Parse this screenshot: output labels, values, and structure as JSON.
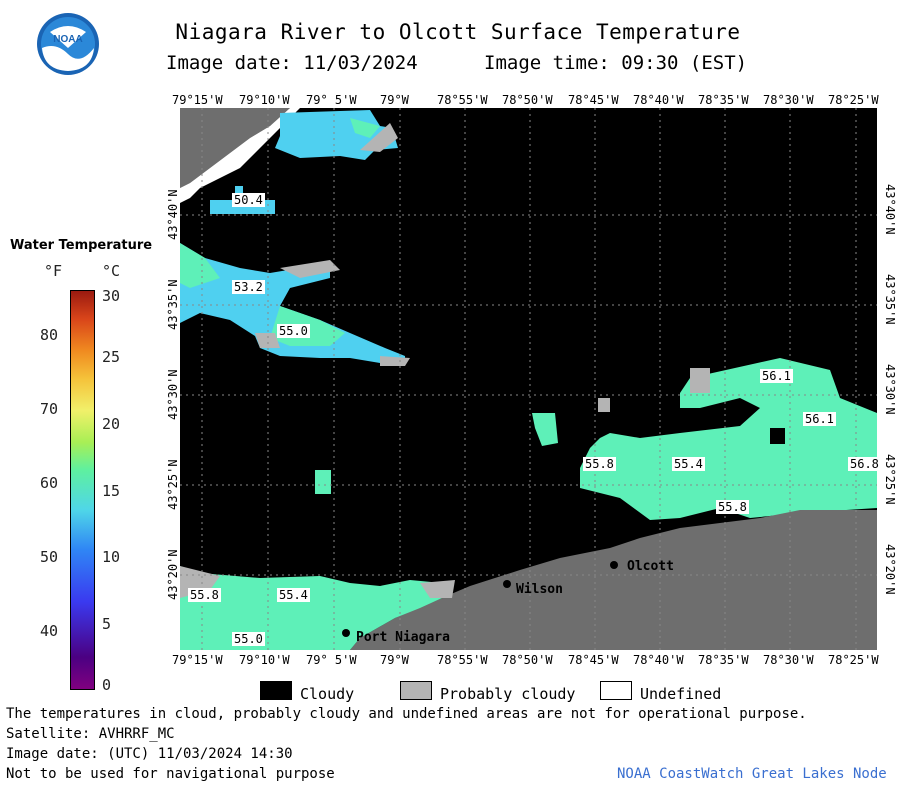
{
  "header": {
    "title": "Niagara River to Olcott Surface Temperature",
    "image_date": "Image date: 11/03/2024",
    "image_time": "Image time: 09:30 (EST)"
  },
  "logo": {
    "text": "NOAA"
  },
  "longitude_labels": [
    "79°15'W",
    "79°10'W",
    "79° 5'W",
    "79°W",
    "78°55'W",
    "78°50'W",
    "78°45'W",
    "78°40'W",
    "78°35'W",
    "78°30'W",
    "78°25'W"
  ],
  "latitude_labels": [
    "43°40'N",
    "43°35'N",
    "43°30'N",
    "43°25'N",
    "43°20'N"
  ],
  "legend": {
    "title": "Water Temperature",
    "unit_f": "°F",
    "unit_c": "°C",
    "f_ticks": [
      "80",
      "70",
      "60",
      "50",
      "40"
    ],
    "c_ticks": [
      "30",
      "25",
      "20",
      "15",
      "10",
      "5",
      "0"
    ]
  },
  "map": {
    "temperature_labels": [
      "50.4",
      "53.2",
      "55.0",
      "56.1",
      "56.1",
      "56.8",
      "55.8",
      "55.4",
      "55.8",
      "55.8",
      "55.4",
      "55.0"
    ],
    "cities": [
      "Olcott",
      "Wilson",
      "Port Niagara"
    ],
    "colors": {
      "cloudy": "#000000",
      "land": "#6e6e6e",
      "probably_cloudy": "#b4b4b4",
      "water_cool": "#5ef0b8",
      "water_cold": "#4fd0f0",
      "undefined": "#ffffff"
    }
  },
  "key": {
    "cloudy": "Cloudy",
    "probably_cloudy": "Probably cloudy",
    "undefined": "Undefined"
  },
  "footer": {
    "disclaimer": "The temperatures in cloud, probably cloudy and undefined areas are not for operational purpose.",
    "satellite": "Satellite: AVHRRF_MC",
    "utc_date": "Image date: (UTC) 11/03/2024  14:30",
    "nav_warning": "Not to be used for navigational purpose",
    "credit": "NOAA CoastWatch Great Lakes Node"
  }
}
